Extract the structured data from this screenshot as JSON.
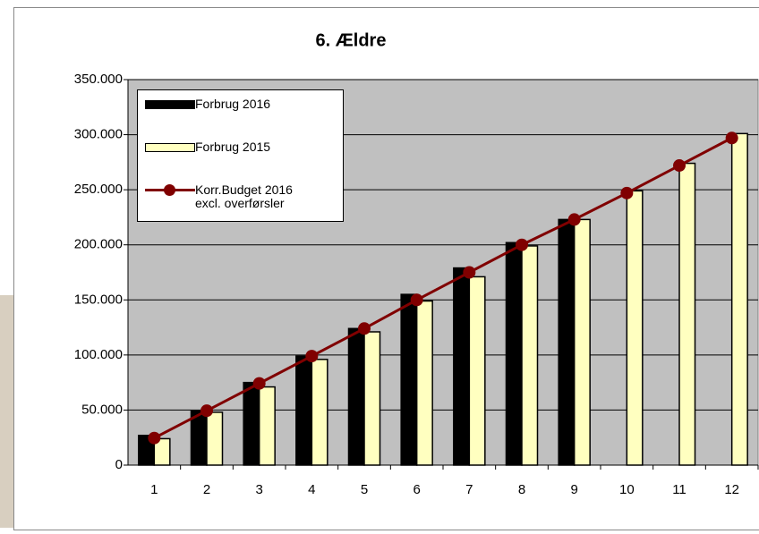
{
  "chart_data": {
    "type": "bar",
    "title": "6. Ældre",
    "categories": [
      "1",
      "2",
      "3",
      "4",
      "5",
      "6",
      "7",
      "8",
      "9",
      "10",
      "11",
      "12"
    ],
    "series": [
      {
        "name": "Forbrug 2016",
        "type": "bar",
        "color": "#000000",
        "values": [
          27000,
          49000,
          75000,
          99000,
          124000,
          155000,
          179000,
          202000,
          223000,
          null,
          null,
          null
        ]
      },
      {
        "name": "Forbrug 2015",
        "type": "bar",
        "color": "#ffffc0",
        "values": [
          24000,
          48000,
          71000,
          96000,
          121000,
          149000,
          171000,
          199000,
          223000,
          249000,
          274000,
          301000
        ]
      },
      {
        "name": "Korr.Budget 2016 excl. overførsler",
        "type": "line",
        "color": "#800000",
        "values": [
          24600,
          49400,
          74200,
          99000,
          124000,
          150000,
          175000,
          200000,
          223000,
          247000,
          272000,
          297000
        ]
      }
    ],
    "ylim": [
      0,
      350000
    ],
    "yticks": [
      0,
      {
        "value": 50000,
        "label": "50.000"
      },
      {
        "value": 100000,
        "label": "100.000"
      },
      {
        "value": 150000,
        "label": "150.000"
      },
      {
        "value": 200000,
        "label": "200.000"
      },
      {
        "value": 250000,
        "label": "250.000"
      },
      {
        "value": 300000,
        "label": "300.000"
      },
      {
        "value": 350000,
        "label": "350.000"
      }
    ],
    "grid": true,
    "plot_background": "#c0c0c0"
  }
}
